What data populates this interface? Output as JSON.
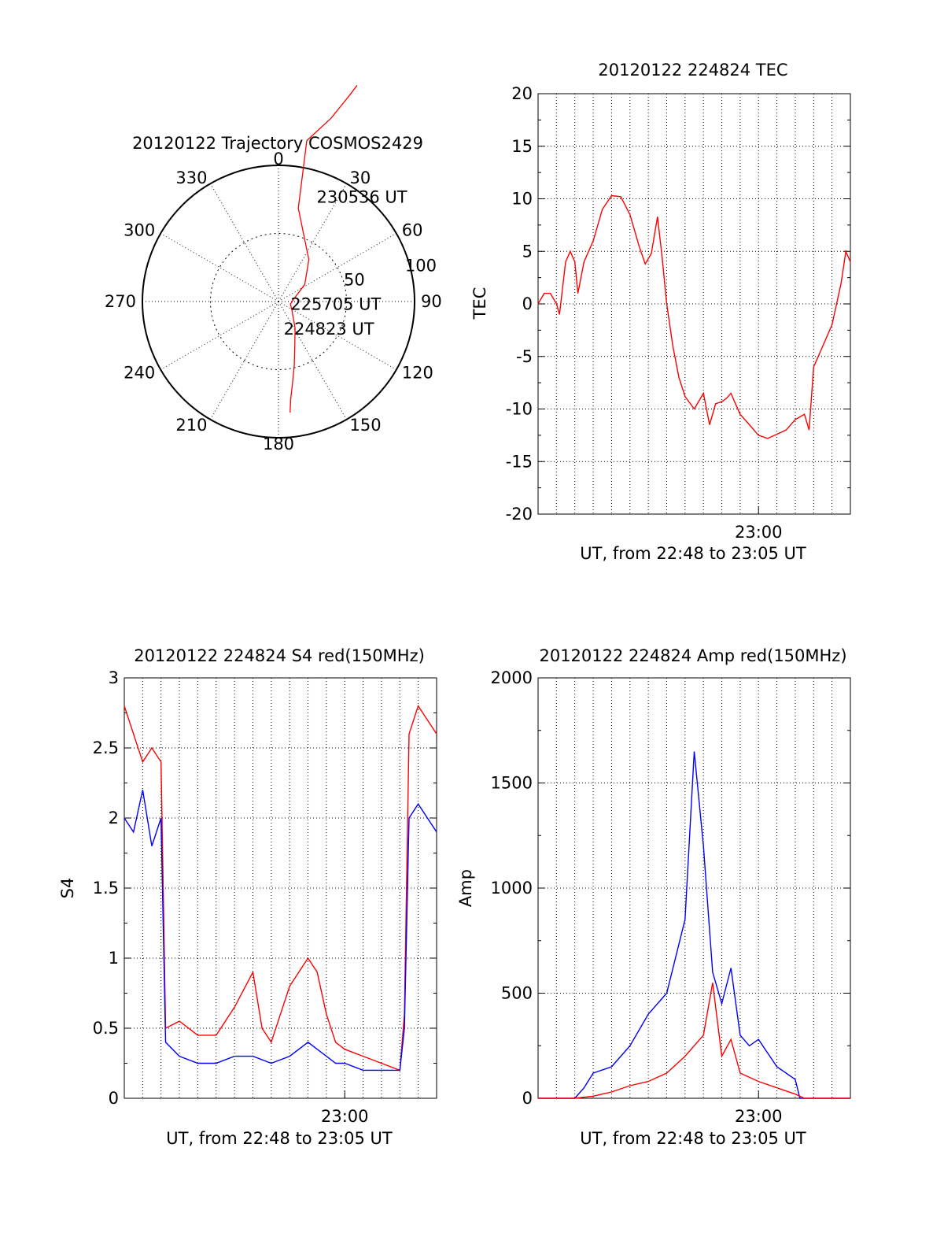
{
  "chart_data": [
    {
      "type": "scatter",
      "subtype": "polar-trajectory",
      "title": "20120122 Trajectory COSMOS2429",
      "angle_labels": [
        "0",
        "30",
        "60",
        "90",
        "120",
        "150",
        "180",
        "210",
        "240",
        "270",
        "300",
        "330"
      ],
      "radius_labels": [
        "50",
        "100"
      ],
      "rlim": [
        0,
        100
      ],
      "grid": true,
      "series": [
        {
          "color": "#ff0000",
          "points": [
            [
              20,
              169
            ],
            [
              19,
              160
            ],
            [
              16,
              140
            ],
            [
              10,
              120
            ],
            [
              12,
              70
            ],
            [
              36,
              38
            ],
            [
              57,
              23
            ],
            [
              78,
              12
            ],
            [
              102,
              9
            ],
            [
              124,
              12
            ],
            [
              148,
              23
            ],
            [
              160,
              35
            ],
            [
              166,
              48
            ],
            [
              170,
              60
            ],
            [
              173,
              73
            ],
            [
              174,
              82
            ]
          ]
        }
      ],
      "annotations": [
        {
          "text": "230536 UT",
          "azimuth": 20,
          "radius": 82
        },
        {
          "text": "225705 UT",
          "azimuth": 100,
          "radius": 9
        },
        {
          "text": "224823 UT",
          "azimuth": 169,
          "radius": 20
        }
      ]
    },
    {
      "type": "line",
      "title": "20120122 224824 TEC",
      "xlabel": "UT, from 22:48 to 23:05 UT",
      "ylabel": "TEC",
      "xlim": [
        "22:48",
        "23:05"
      ],
      "ylim": [
        -20,
        20
      ],
      "yticks": [
        20,
        15,
        10,
        5,
        0,
        -5,
        -10,
        -15,
        -20
      ],
      "xticks": [
        "23:00"
      ],
      "grid": true,
      "series": [
        {
          "color": "#ff0000",
          "x": [
            "22:48:00",
            "22:48:20",
            "22:48:40",
            "22:49:00",
            "22:49:10",
            "22:49:30",
            "22:49:45",
            "22:50:00",
            "22:50:10",
            "22:50:30",
            "22:51:00",
            "22:51:30",
            "22:52:00",
            "22:52:30",
            "22:53:00",
            "22:53:30",
            "22:53:50",
            "22:54:10",
            "22:54:30",
            "22:54:45",
            "22:55:00",
            "22:55:20",
            "22:55:40",
            "22:56:00",
            "22:56:30",
            "22:57:00",
            "22:57:20",
            "22:57:40",
            "22:58:00",
            "22:58:15",
            "22:58:30",
            "22:58:40",
            "22:59:00",
            "22:59:30",
            "23:00:00",
            "23:00:30",
            "23:01:00",
            "23:01:30",
            "23:02:00",
            "23:02:30",
            "23:02:45",
            "23:03:00",
            "23:03:15",
            "23:03:30",
            "23:04:00",
            "23:04:30",
            "23:04:45",
            "23:05:00"
          ],
          "y": [
            0,
            1,
            1,
            0,
            -1,
            4,
            5,
            4,
            1,
            4,
            6,
            9,
            10.3,
            10.2,
            8.5,
            5.5,
            3.8,
            4.8,
            8.3,
            4.5,
            0,
            -4,
            -7,
            -8.8,
            -10,
            -8.5,
            -11.5,
            -9.5,
            -9.3,
            -9,
            -8.5,
            -9.2,
            -10.5,
            -11.5,
            -12.5,
            -12.8,
            -12.4,
            -12,
            -11,
            -10.5,
            -12,
            -6,
            -5,
            -4,
            -2,
            2,
            5,
            4
          ]
        }
      ]
    },
    {
      "type": "line",
      "title": "20120122 224824 S4 red(150MHz)",
      "xlabel": "UT, from 22:48 to 23:05 UT",
      "ylabel": "S4",
      "xlim": [
        "22:48",
        "23:05"
      ],
      "ylim": [
        0,
        3
      ],
      "yticks": [
        3,
        2.5,
        2,
        1.5,
        1,
        0.5,
        0
      ],
      "xticks": [
        "23:00"
      ],
      "grid": true,
      "series": [
        {
          "color": "#ff0000",
          "x": [
            "22:48:00",
            "22:48:30",
            "22:49:00",
            "22:49:30",
            "22:50:00",
            "22:50:15",
            "22:51:00",
            "22:52:00",
            "22:53:00",
            "22:54:00",
            "22:55:00",
            "22:55:30",
            "22:56:00",
            "22:57:00",
            "22:58:00",
            "22:58:30",
            "22:59:00",
            "22:59:30",
            "23:00:00",
            "23:01:00",
            "23:02:00",
            "23:03:00",
            "23:03:15",
            "23:03:30",
            "23:04:00",
            "23:05:00"
          ],
          "y": [
            2.8,
            2.6,
            2.4,
            2.5,
            2.4,
            0.5,
            0.55,
            0.45,
            0.45,
            0.65,
            0.9,
            0.5,
            0.4,
            0.8,
            1.0,
            0.9,
            0.6,
            0.4,
            0.35,
            0.3,
            0.25,
            0.2,
            0.6,
            2.6,
            2.8,
            2.6
          ]
        },
        {
          "color": "#0000ff",
          "x": [
            "22:48:00",
            "22:48:30",
            "22:49:00",
            "22:49:30",
            "22:50:00",
            "22:50:15",
            "22:51:00",
            "22:52:00",
            "22:53:00",
            "22:54:00",
            "22:55:00",
            "22:56:00",
            "22:57:00",
            "22:58:00",
            "22:58:30",
            "22:59:00",
            "22:59:30",
            "23:00:00",
            "23:01:00",
            "23:02:00",
            "23:03:00",
            "23:03:15",
            "23:03:30",
            "23:04:00",
            "23:05:00"
          ],
          "y": [
            2.0,
            1.9,
            2.2,
            1.8,
            2.0,
            0.4,
            0.3,
            0.25,
            0.25,
            0.3,
            0.3,
            0.25,
            0.3,
            0.4,
            0.35,
            0.3,
            0.25,
            0.25,
            0.2,
            0.2,
            0.2,
            0.5,
            2.0,
            2.1,
            1.9
          ]
        }
      ]
    },
    {
      "type": "line",
      "title": "20120122 224824 Amp red(150MHz)",
      "xlabel": "UT, from 22:48 to 23:05 UT",
      "ylabel": "Amp",
      "xlim": [
        "22:48",
        "23:05"
      ],
      "ylim": [
        0,
        2000
      ],
      "yticks": [
        2000,
        1500,
        1000,
        500,
        0
      ],
      "xticks": [
        "23:00"
      ],
      "grid": true,
      "series": [
        {
          "color": "#0000ff",
          "x": [
            "22:48:00",
            "22:50:00",
            "22:50:30",
            "22:51:00",
            "22:52:00",
            "22:53:00",
            "22:54:00",
            "22:55:00",
            "22:56:00",
            "22:56:30",
            "22:57:00",
            "22:57:30",
            "22:58:00",
            "22:58:30",
            "22:59:00",
            "22:59:30",
            "23:00:00",
            "23:01:00",
            "23:02:00",
            "23:02:15",
            "23:02:30",
            "23:05:00"
          ],
          "y": [
            0,
            0,
            50,
            120,
            150,
            250,
            400,
            500,
            850,
            1650,
            1200,
            600,
            450,
            620,
            300,
            250,
            280,
            150,
            90,
            0,
            0,
            0
          ]
        },
        {
          "color": "#ff0000",
          "x": [
            "22:48:00",
            "22:50:00",
            "22:51:00",
            "22:52:00",
            "22:53:00",
            "22:54:00",
            "22:55:00",
            "22:56:00",
            "22:57:00",
            "22:57:30",
            "22:58:00",
            "22:58:30",
            "22:59:00",
            "23:00:00",
            "23:01:00",
            "23:02:00",
            "23:02:30",
            "23:05:00"
          ],
          "y": [
            0,
            0,
            10,
            30,
            60,
            80,
            120,
            200,
            300,
            550,
            200,
            280,
            120,
            80,
            50,
            20,
            0,
            0
          ]
        }
      ]
    }
  ]
}
